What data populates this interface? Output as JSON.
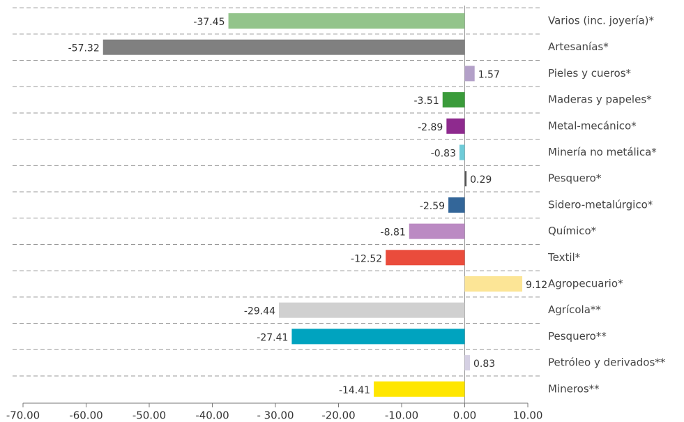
{
  "chart_data": {
    "type": "hbar",
    "categories": [
      "Varios (inc. joyería)*",
      "Artesanías*",
      "Pieles y cueros*",
      "Maderas y papeles*",
      "Metal-mecánico*",
      "Minería no metálica*",
      "Pesquero*",
      "Sidero-metalúrgico*",
      "Químico*",
      "Textil*",
      "Agropecuario*",
      "Agrícola**",
      "Pesquero**",
      "Petróleo y derivados**",
      "Mineros**"
    ],
    "values": [
      -37.45,
      -57.32,
      1.57,
      -3.51,
      -2.89,
      -0.83,
      0.29,
      -2.59,
      -8.81,
      -12.52,
      9.12,
      -29.44,
      -27.41,
      0.83,
      -14.41
    ],
    "colors": [
      "#93c48b",
      "#808080",
      "#b3a0c8",
      "#3a9b3a",
      "#8e2a8e",
      "#6ecbd8",
      "#555555",
      "#336699",
      "#bb8ac3",
      "#ea4c3c",
      "#fce596",
      "#d0d0d0",
      "#00a3bf",
      "#d5d0e3",
      "#ffe600"
    ],
    "xlim": [
      -70,
      10
    ],
    "xticks": [
      {
        "value": -70,
        "label": "-70.00"
      },
      {
        "value": -60,
        "label": "-60.00"
      },
      {
        "value": -50,
        "label": "-50.00"
      },
      {
        "value": -40,
        "label": "-40.00"
      },
      {
        "value": -30,
        "label": "- 30.00"
      },
      {
        "value": -20,
        "label": "-20.00"
      },
      {
        "value": -10,
        "label": "-10.00"
      },
      {
        "value": 0,
        "label": "0.00"
      },
      {
        "value": 10,
        "label": "10.00"
      }
    ]
  }
}
